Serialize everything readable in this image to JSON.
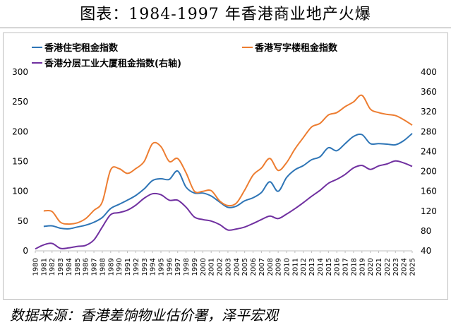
{
  "header": {
    "title": "图表：1984-1997 年香港商业地产火爆"
  },
  "footer": {
    "source": "数据来源：香港差饷物业估价署，泽平宏观"
  },
  "chart_data": {
    "type": "line",
    "x": [
      1980,
      1981,
      1982,
      1983,
      1984,
      1985,
      1986,
      1987,
      1988,
      1989,
      1990,
      1991,
      1992,
      1993,
      1994,
      1995,
      1996,
      1997,
      1998,
      1999,
      2000,
      2001,
      2002,
      2003,
      2004,
      2005,
      2006,
      2007,
      2008,
      2009,
      2010,
      2011,
      2012,
      2013,
      2014,
      2015,
      2016,
      2017,
      2018,
      2019,
      2020,
      2021,
      2022,
      2023,
      2024,
      2025
    ],
    "x_tick_labels": [
      "1980",
      "1981",
      "1982",
      "1983",
      "1984",
      "1985",
      "1986",
      "1987",
      "1988",
      "1989",
      "1990",
      "1991",
      "1992",
      "1993",
      "1994",
      "1995",
      "1996",
      "1997",
      "1998",
      "1999",
      "2000",
      "2001",
      "2002",
      "2003",
      "2004",
      "2005",
      "2006",
      "2007",
      "2008",
      "2009",
      "2010",
      "2011",
      "2012",
      "2013",
      "2014",
      "2015",
      "2016",
      "2017",
      "2018",
      "2019",
      "2020",
      "2021",
      "2022",
      "2023",
      "2024",
      "2025"
    ],
    "y_left": {
      "lim": [
        0,
        300
      ],
      "ticks": [
        0,
        50,
        100,
        150,
        200,
        250,
        300
      ]
    },
    "y_right": {
      "lim": [
        40,
        400
      ],
      "ticks": [
        40,
        80,
        120,
        160,
        200,
        240,
        280,
        320,
        360,
        400
      ]
    },
    "series": [
      {
        "name": "香港住宅租金指数",
        "axis": "left",
        "color": "#2e75b6",
        "x": [
          1981,
          1982,
          1983,
          1984,
          1985,
          1986,
          1987,
          1988,
          1989,
          1990,
          1991,
          1992,
          1993,
          1994,
          1995,
          1996,
          1997,
          1998,
          1999,
          2000,
          2001,
          2002,
          2003,
          2004,
          2005,
          2006,
          2007,
          2008,
          2009,
          2010,
          2011,
          2012,
          2013,
          2014,
          2015,
          2016,
          2017,
          2018,
          2019,
          2020,
          2021,
          2022,
          2023,
          2024,
          2025
        ],
        "values": [
          41,
          42,
          38,
          37,
          40,
          43,
          48,
          56,
          71,
          78,
          85,
          93,
          104,
          118,
          121,
          120,
          134,
          107,
          97,
          97,
          92,
          82,
          73,
          75,
          84,
          89,
          98,
          116,
          100,
          123,
          136,
          143,
          153,
          158,
          173,
          168,
          180,
          192,
          195,
          180,
          180,
          179,
          178,
          185,
          197
        ]
      },
      {
        "name": "香港写字楼租金指数",
        "axis": "left",
        "color": "#ed7d31",
        "x": [
          1981,
          1982,
          1983,
          1984,
          1985,
          1986,
          1987,
          1988,
          1989,
          1990,
          1991,
          1992,
          1993,
          1994,
          1995,
          1996,
          1997,
          1998,
          1999,
          2000,
          2001,
          2002,
          2003,
          2004,
          2005,
          2006,
          2007,
          2008,
          2009,
          2010,
          2011,
          2012,
          2013,
          2014,
          2015,
          2016,
          2017,
          2018,
          2019,
          2020,
          2021,
          2022,
          2023,
          2024,
          2025
        ],
        "values": [
          67,
          66,
          48,
          45,
          47,
          54,
          68,
          82,
          136,
          138,
          130,
          138,
          150,
          180,
          175,
          150,
          155,
          131,
          100,
          100,
          101,
          84,
          76,
          80,
          102,
          127,
          139,
          155,
          135,
          148,
          171,
          190,
          208,
          214,
          228,
          232,
          242,
          250,
          261,
          238,
          232,
          229,
          227,
          220,
          211
        ]
      },
      {
        "name": "香港分层工业大厦租金指数(右轴)",
        "axis": "right",
        "color": "#7030a0",
        "x": [
          1980,
          1981,
          1982,
          1983,
          1984,
          1985,
          1986,
          1987,
          1988,
          1989,
          1990,
          1991,
          1992,
          1993,
          1994,
          1995,
          1996,
          1997,
          1998,
          1999,
          2000,
          2001,
          2002,
          2003,
          2004,
          2005,
          2006,
          2007,
          2008,
          2009,
          2010,
          2011,
          2012,
          2013,
          2014,
          2015,
          2016,
          2017,
          2018,
          2019,
          2020,
          2021,
          2022,
          2023,
          2024,
          2025
        ],
        "values": [
          44,
          52,
          55,
          45,
          46,
          49,
          51,
          62,
          88,
          113,
          117,
          122,
          132,
          146,
          155,
          153,
          142,
          142,
          128,
          108,
          103,
          100,
          93,
          82,
          84,
          88,
          95,
          103,
          110,
          105,
          114,
          125,
          137,
          150,
          162,
          176,
          184,
          194,
          207,
          212,
          204,
          211,
          215,
          221,
          217,
          210
        ]
      }
    ]
  }
}
